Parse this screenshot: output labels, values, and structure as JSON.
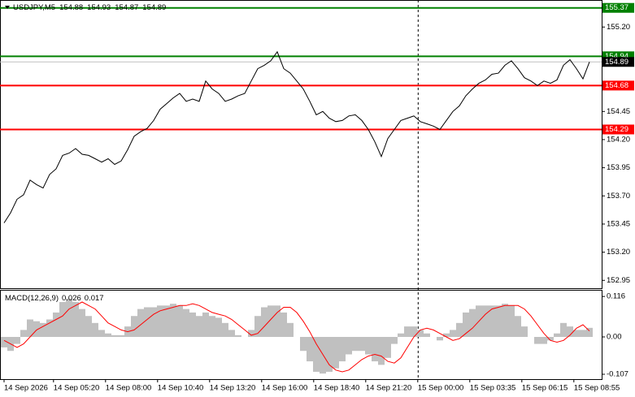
{
  "chart_data": [
    {
      "type": "line",
      "symbol": "USDJPY,M5",
      "ohlc": [
        154.88,
        154.93,
        154.87,
        154.89
      ],
      "color": "#000000",
      "values": [
        153.46,
        153.55,
        153.67,
        153.71,
        153.84,
        153.8,
        153.77,
        153.89,
        153.94,
        154.06,
        154.08,
        154.12,
        154.07,
        154.06,
        154.03,
        154.0,
        154.03,
        153.98,
        154.01,
        154.11,
        154.23,
        154.27,
        154.3,
        154.37,
        154.47,
        154.52,
        154.57,
        154.61,
        154.54,
        154.56,
        154.54,
        154.72,
        154.65,
        154.61,
        154.54,
        154.56,
        154.59,
        154.61,
        154.72,
        154.83,
        154.86,
        154.9,
        154.98,
        154.83,
        154.79,
        154.72,
        154.65,
        154.54,
        154.42,
        154.45,
        154.39,
        154.36,
        154.37,
        154.41,
        154.42,
        154.37,
        154.29,
        154.18,
        154.05,
        154.21,
        154.29,
        154.37,
        154.39,
        154.41,
        154.36,
        154.34,
        154.32,
        154.29,
        154.37,
        154.45,
        154.5,
        154.59,
        154.65,
        154.7,
        154.73,
        154.78,
        154.79,
        154.86,
        154.9,
        154.83,
        154.75,
        154.72,
        154.68,
        154.72,
        154.7,
        154.73,
        154.86,
        154.91,
        154.83,
        154.74,
        154.89
      ],
      "current_price": 154.89,
      "levels": [
        {
          "value": 155.37,
          "color": "#008000"
        },
        {
          "value": 154.94,
          "color": "#008000"
        },
        {
          "value": 154.68,
          "color": "#ff0000"
        },
        {
          "value": 154.29,
          "color": "#ff0000"
        }
      ],
      "ylim": [
        152.88,
        155.44
      ],
      "yticks": [
        {
          "value": 155.2,
          "label": "155.20"
        },
        154.45,
        {
          "value": 154.2,
          "label": "154.20"
        },
        153.95,
        {
          "value": 153.7,
          "label": "153.70"
        },
        153.45,
        {
          "value": 153.2,
          "label": "153.20"
        },
        152.95
      ],
      "xticks": [
        {
          "value": 0,
          "label": "14 Sep 2026"
        },
        {
          "value": 7.6,
          "label": "14 Sep 05:20"
        },
        {
          "value": 15.6,
          "label": "14 Sep 08:00"
        },
        {
          "value": 23.6,
          "label": "14 Sep 10:40"
        },
        {
          "value": 31.6,
          "label": "14 Sep 13:20"
        },
        {
          "value": 39.6,
          "label": "14 Sep 16:00"
        },
        {
          "value": 47.6,
          "label": "14 Sep 18:40"
        },
        {
          "value": 55.6,
          "label": "14 Sep 21:20"
        },
        {
          "value": 63.6,
          "label": "15 Sep 00:00"
        },
        {
          "value": 71.6,
          "label": "15 Sep 03:35"
        },
        {
          "value": 79.6,
          "label": "15 Sep 06:15"
        },
        {
          "value": 87.6,
          "label": "15 Sep 08:55"
        }
      ],
      "separator": 8
    },
    {
      "type": "macd",
      "label": "MACD(12,26,9)",
      "header_values": [
        0.026,
        0.017
      ],
      "series": [
        {
          "color": "#c0c0c0",
          "values": [
            -0.03,
            -0.04,
            -0.02,
            0.02,
            0.05,
            0.045,
            0.04,
            0.05,
            0.07,
            0.1,
            0.11,
            0.1,
            0.08,
            0.06,
            0.04,
            0.02,
            0.01,
            0.005,
            0.005,
            0.03,
            0.06,
            0.08,
            0.085,
            0.085,
            0.09,
            0.09,
            0.095,
            0.09,
            0.08,
            0.07,
            0.06,
            0.07,
            0.06,
            0.055,
            0.04,
            0.02,
            0.005,
            0.0,
            0.02,
            0.06,
            0.085,
            0.09,
            0.09,
            0.07,
            0.04,
            0.0,
            -0.04,
            -0.07,
            -0.1,
            -0.105,
            -0.1,
            -0.09,
            -0.07,
            -0.05,
            -0.04,
            -0.04,
            -0.05,
            -0.07,
            -0.08,
            -0.06,
            -0.02,
            0.01,
            0.03,
            0.03,
            0.02,
            0.01,
            0.0,
            -0.01,
            0.01,
            0.02,
            0.04,
            0.07,
            0.08,
            0.09,
            0.09,
            0.09,
            0.09,
            0.095,
            0.09,
            0.06,
            0.03,
            0.0,
            -0.02,
            -0.02,
            -0.01,
            0.01,
            0.04,
            0.03,
            0.02,
            0.02,
            0.026
          ]
        },
        {
          "color": "#ff0000",
          "values": [
            -0.01,
            -0.02,
            -0.03,
            -0.02,
            0.0,
            0.02,
            0.03,
            0.04,
            0.05,
            0.06,
            0.08,
            0.09,
            0.1,
            0.09,
            0.08,
            0.06,
            0.04,
            0.03,
            0.02,
            0.015,
            0.02,
            0.035,
            0.05,
            0.065,
            0.075,
            0.08,
            0.085,
            0.09,
            0.09,
            0.095,
            0.09,
            0.08,
            0.07,
            0.065,
            0.06,
            0.05,
            0.035,
            0.02,
            0.005,
            0.01,
            0.03,
            0.05,
            0.07,
            0.085,
            0.085,
            0.07,
            0.045,
            0.015,
            -0.02,
            -0.05,
            -0.08,
            -0.095,
            -0.1,
            -0.095,
            -0.08,
            -0.065,
            -0.055,
            -0.05,
            -0.055,
            -0.07,
            -0.075,
            -0.06,
            -0.03,
            0.0,
            0.02,
            0.025,
            0.02,
            0.01,
            0.0,
            -0.01,
            -0.005,
            0.01,
            0.025,
            0.045,
            0.065,
            0.08,
            0.085,
            0.09,
            0.09,
            0.09,
            0.08,
            0.06,
            0.035,
            0.01,
            -0.01,
            -0.015,
            -0.01,
            0.005,
            0.025,
            0.035,
            0.017
          ]
        }
      ],
      "ylim": [
        -0.121,
        0.135
      ],
      "yticks": [
        0.116,
        {
          "value": 0,
          "label": "0.00"
        },
        -0.107
      ]
    }
  ]
}
